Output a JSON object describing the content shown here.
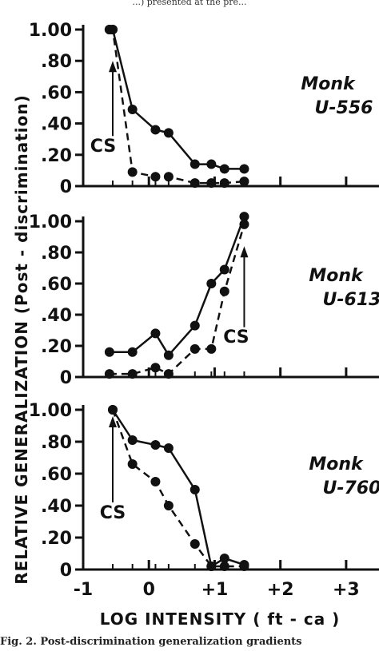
{
  "top_fragment": "...) presented at the pre...",
  "caption": "Fig. 2. Post-discrimination generalization gradients",
  "chart_data": {
    "type": "line",
    "xlabel": "LOG INTENSITY ( ft - ca )",
    "ylabel": "RELATIVE GENERALIZATION (Post - discrimination)",
    "xlim": [
      -1,
      3.5
    ],
    "ylim": [
      0,
      1.0
    ],
    "x_ticks": [
      "-1",
      "0",
      "+1",
      "+2",
      "+3"
    ],
    "y_ticks": [
      "0",
      ".20",
      ".40",
      ".60",
      ".80",
      "1.00"
    ],
    "grid": false,
    "panels": [
      {
        "annotation": [
          "Monk",
          "U-556"
        ],
        "cs_label": "CS",
        "cs_x": -0.55,
        "series": [
          {
            "style": "solid",
            "x": [
              -0.6,
              -0.55,
              -0.25,
              0.1,
              0.3,
              0.7,
              0.95,
              1.15,
              1.45
            ],
            "y": [
              1.0,
              1.0,
              0.49,
              0.36,
              0.34,
              0.14,
              0.14,
              0.11,
              0.11
            ]
          },
          {
            "style": "dashed",
            "x": [
              -0.6,
              -0.55,
              -0.25,
              0.1,
              0.3,
              0.7,
              0.95,
              1.15,
              1.45
            ],
            "y": [
              1.0,
              1.0,
              0.09,
              0.06,
              0.06,
              0.02,
              0.02,
              0.02,
              0.03
            ]
          }
        ]
      },
      {
        "annotation": [
          "Monk",
          "U-613"
        ],
        "cs_label": "CS",
        "cs_x": 1.45,
        "series": [
          {
            "style": "solid",
            "x": [
              -0.6,
              -0.25,
              0.1,
              0.3,
              0.7,
              0.95,
              1.15,
              1.45
            ],
            "y": [
              0.16,
              0.16,
              0.28,
              0.14,
              0.33,
              0.6,
              0.69,
              1.03
            ]
          },
          {
            "style": "dashed",
            "x": [
              -0.6,
              -0.25,
              0.1,
              0.3,
              0.7,
              0.95,
              1.15,
              1.45
            ],
            "y": [
              0.02,
              0.02,
              0.06,
              0.02,
              0.18,
              0.18,
              0.55,
              0.98
            ]
          }
        ]
      },
      {
        "annotation": [
          "Monk",
          "U-760"
        ],
        "cs_label": "CS",
        "cs_x": -0.55,
        "series": [
          {
            "style": "solid",
            "x": [
              -0.55,
              -0.25,
              0.1,
              0.3,
              0.7,
              0.95,
              1.15,
              1.45
            ],
            "y": [
              1.0,
              0.81,
              0.78,
              0.76,
              0.5,
              0.02,
              0.07,
              0.03
            ]
          },
          {
            "style": "dashed",
            "x": [
              -0.55,
              -0.25,
              0.1,
              0.3,
              0.7,
              0.95,
              1.15,
              1.45
            ],
            "y": [
              1.0,
              0.66,
              0.55,
              0.4,
              0.16,
              0.02,
              0.02,
              0.02
            ]
          }
        ]
      }
    ]
  }
}
